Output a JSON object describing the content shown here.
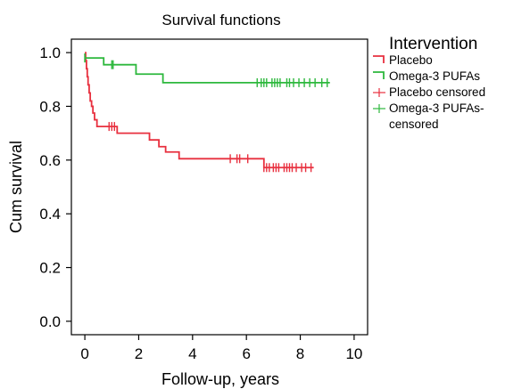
{
  "chart_data": {
    "type": "line",
    "title": "Survival functions",
    "xlabel": "Follow-up, years",
    "ylabel": "Cum survival",
    "xlim": [
      -0.5,
      10.5
    ],
    "ylim": [
      -0.05,
      1.05
    ],
    "xticks": [
      0,
      2,
      4,
      6,
      8,
      10
    ],
    "yticks": [
      0.0,
      0.2,
      0.4,
      0.6,
      0.8,
      1.0
    ],
    "xtick_labels": [
      "0",
      "2",
      "4",
      "6",
      "8",
      "10"
    ],
    "ytick_labels": [
      "0.0",
      "0.2",
      "0.4",
      "0.6",
      "0.8",
      "1.0"
    ],
    "grid": false,
    "legend": {
      "title": "Intervention",
      "placement": "right",
      "entries": [
        {
          "label": "Placebo",
          "kind": "step",
          "color": "#e8303f"
        },
        {
          "label": "Omega-3 PUFAs",
          "kind": "step",
          "color": "#2db83d"
        },
        {
          "label": "Placebo censored",
          "kind": "censor",
          "color": "#e8303f"
        },
        {
          "label": "Omega-3 PUFAs-",
          "label2": "censored",
          "kind": "censor",
          "color": "#2db83d"
        }
      ]
    },
    "series": [
      {
        "name": "Placebo",
        "color": "#e8303f",
        "steps": [
          [
            0,
            1.0
          ],
          [
            0.03,
            0.97
          ],
          [
            0.06,
            0.94
          ],
          [
            0.09,
            0.91
          ],
          [
            0.12,
            0.88
          ],
          [
            0.16,
            0.85
          ],
          [
            0.2,
            0.82
          ],
          [
            0.25,
            0.8
          ],
          [
            0.3,
            0.775
          ],
          [
            0.36,
            0.75
          ],
          [
            0.45,
            0.725
          ],
          [
            1.2,
            0.7
          ],
          [
            2.4,
            0.675
          ],
          [
            2.75,
            0.65
          ],
          [
            3.0,
            0.63
          ],
          [
            3.5,
            0.605
          ],
          [
            6.65,
            0.572
          ],
          [
            8.5,
            0.572
          ]
        ],
        "censored": [
          0.9,
          1.0,
          1.1,
          5.4,
          5.65,
          5.75,
          6.05,
          6.65,
          6.75,
          6.85,
          7.0,
          7.1,
          7.2,
          7.4,
          7.5,
          7.6,
          7.7,
          7.85,
          8.05,
          8.2,
          8.4
        ]
      },
      {
        "name": "Omega-3 PUFAs",
        "color": "#2db83d",
        "steps": [
          [
            0,
            0.98
          ],
          [
            0.7,
            0.955
          ],
          [
            1.9,
            0.92
          ],
          [
            2.9,
            0.888
          ],
          [
            9.1,
            0.888
          ]
        ],
        "censored": [
          0.0,
          0.0,
          1.0,
          1.05,
          6.4,
          6.55,
          6.65,
          6.75,
          6.95,
          7.05,
          7.15,
          7.25,
          7.5,
          7.6,
          7.75,
          7.95,
          8.15,
          8.35,
          8.55,
          8.8,
          9.0
        ]
      }
    ]
  }
}
